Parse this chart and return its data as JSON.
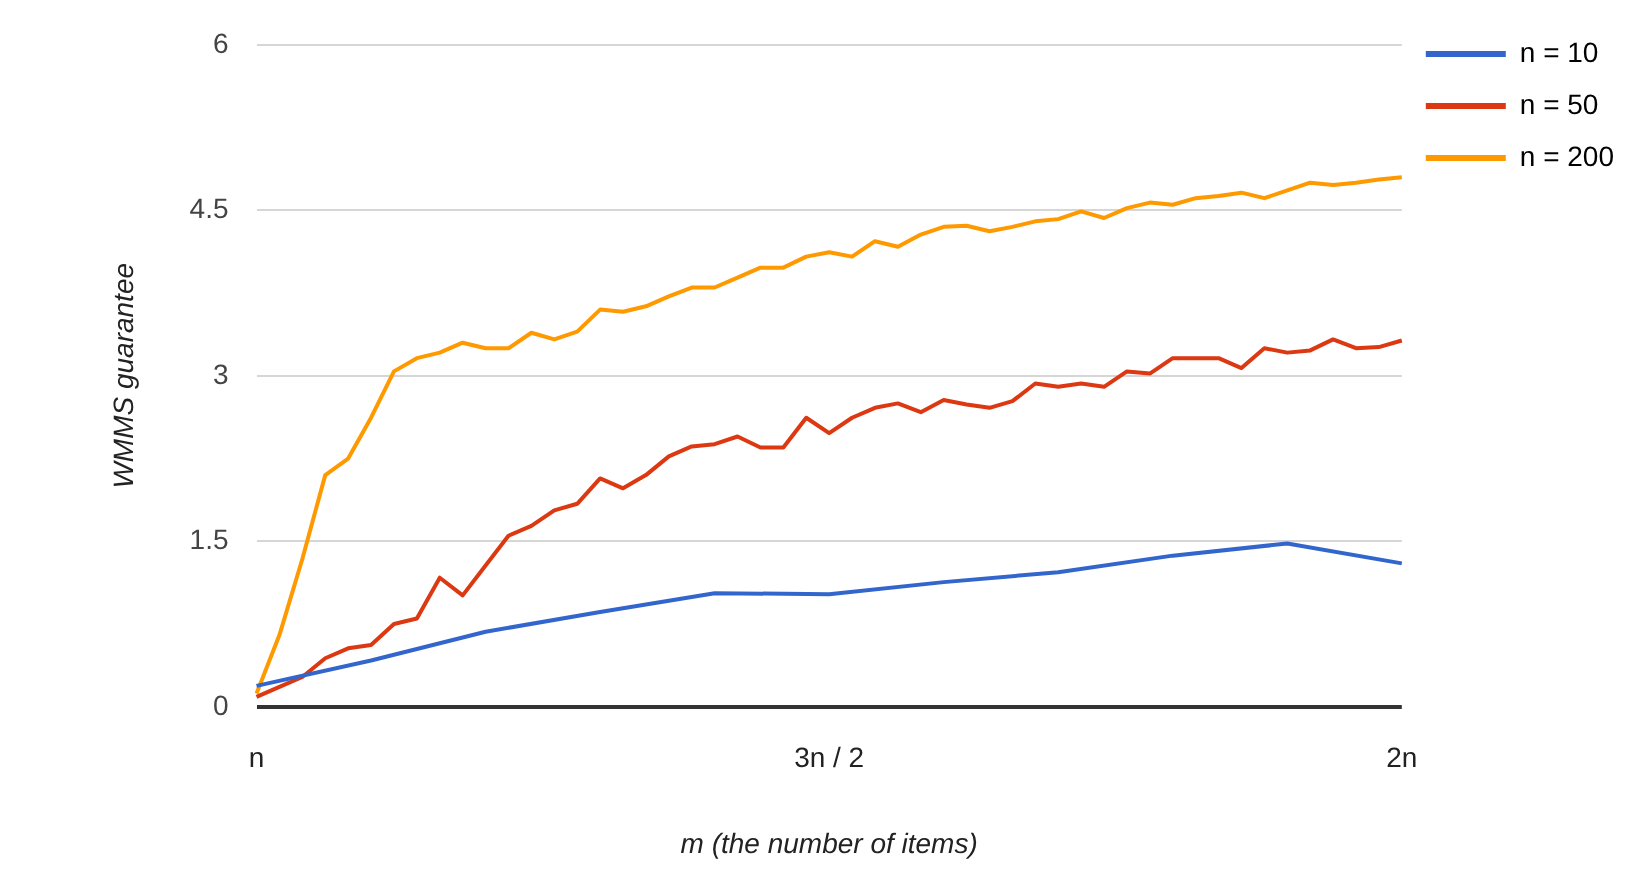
{
  "chart_data": {
    "type": "line",
    "xlabel": "m (the number of items)",
    "ylabel": "WMMS guarantee",
    "categories": [
      "n",
      null,
      null,
      null,
      null,
      null,
      null,
      null,
      null,
      null,
      null,
      null,
      null,
      null,
      null,
      null,
      null,
      null,
      null,
      null,
      null,
      null,
      null,
      null,
      null,
      "3n / 2",
      null,
      null,
      null,
      null,
      null,
      null,
      null,
      null,
      null,
      null,
      null,
      null,
      null,
      null,
      null,
      null,
      null,
      null,
      null,
      null,
      null,
      null,
      null,
      null,
      "2n"
    ],
    "ylim": [
      0,
      6
    ],
    "yticks": [
      0,
      1.5,
      3,
      4.5,
      6
    ],
    "grid": "y",
    "legend": "right",
    "marker": "none",
    "line_style": "solid",
    "series": [
      {
        "name": "n = 10",
        "color": "#3366cc",
        "values": [
          0.19,
          null,
          null,
          null,
          null,
          0.42,
          null,
          null,
          null,
          null,
          0.68,
          null,
          null,
          null,
          null,
          0.86,
          null,
          null,
          null,
          null,
          1.03,
          null,
          null,
          null,
          null,
          1.02,
          null,
          null,
          null,
          null,
          1.13,
          null,
          null,
          null,
          null,
          1.22,
          null,
          null,
          null,
          null,
          1.37,
          null,
          null,
          null,
          null,
          1.48,
          null,
          null,
          null,
          null,
          1.3
        ]
      },
      {
        "name": "n = 50",
        "color": "#dc3912",
        "values": [
          0.09,
          0.18,
          0.27,
          0.44,
          0.53,
          0.56,
          0.75,
          0.8,
          1.17,
          1.01,
          1.28,
          1.55,
          1.64,
          1.78,
          1.84,
          2.07,
          1.98,
          2.1,
          2.27,
          2.36,
          2.38,
          2.45,
          2.35,
          2.35,
          2.62,
          2.48,
          2.62,
          2.71,
          2.75,
          2.67,
          2.78,
          2.74,
          2.71,
          2.77,
          2.93,
          2.9,
          2.93,
          2.9,
          3.04,
          3.02,
          3.16,
          3.16,
          3.16,
          3.07,
          3.25,
          3.21,
          3.23,
          3.33,
          3.25,
          3.26,
          3.32
        ]
      },
      {
        "name": "n = 200",
        "color": "#ff9900",
        "values": [
          0.12,
          0.65,
          1.34,
          2.1,
          2.25,
          2.62,
          3.04,
          3.16,
          3.21,
          3.3,
          3.25,
          3.25,
          3.39,
          3.33,
          3.4,
          3.6,
          3.58,
          3.63,
          3.72,
          3.8,
          3.8,
          3.89,
          3.98,
          3.98,
          4.08,
          4.12,
          4.08,
          4.22,
          4.17,
          4.28,
          4.35,
          4.36,
          4.31,
          4.35,
          4.4,
          4.42,
          4.49,
          4.43,
          4.52,
          4.57,
          4.55,
          4.61,
          4.63,
          4.66,
          4.61,
          4.68,
          4.75,
          4.73,
          4.75,
          4.78,
          4.8
        ]
      }
    ]
  }
}
